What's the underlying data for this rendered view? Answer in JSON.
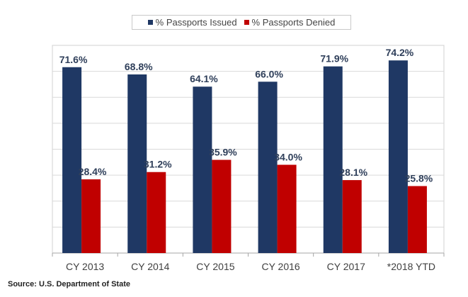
{
  "chart_data": {
    "type": "bar",
    "categories": [
      "CY 2013",
      "CY 2014",
      "CY 2015",
      "CY 2016",
      "CY 2017",
      "*2018 YTD"
    ],
    "series": [
      {
        "name": "% Passports Issued",
        "values": [
          71.6,
          68.8,
          64.1,
          66.0,
          71.9,
          74.2
        ],
        "labels": [
          "71.6%",
          "68.8%",
          "64.1%",
          "66.0%",
          "71.9%",
          "74.2%"
        ],
        "color": "#1f3864"
      },
      {
        "name": "% Passports Denied",
        "values": [
          28.4,
          31.2,
          35.9,
          34.0,
          28.1,
          25.8
        ],
        "labels": [
          "28.4%",
          "31.2%",
          "35.9%",
          "34.0%",
          "28.1%",
          "25.8%"
        ],
        "color": "#c00000"
      }
    ],
    "ylim": [
      0,
      80
    ],
    "grid": true,
    "legend_position": "top"
  },
  "source_note": "Source: U.S. Department of State"
}
